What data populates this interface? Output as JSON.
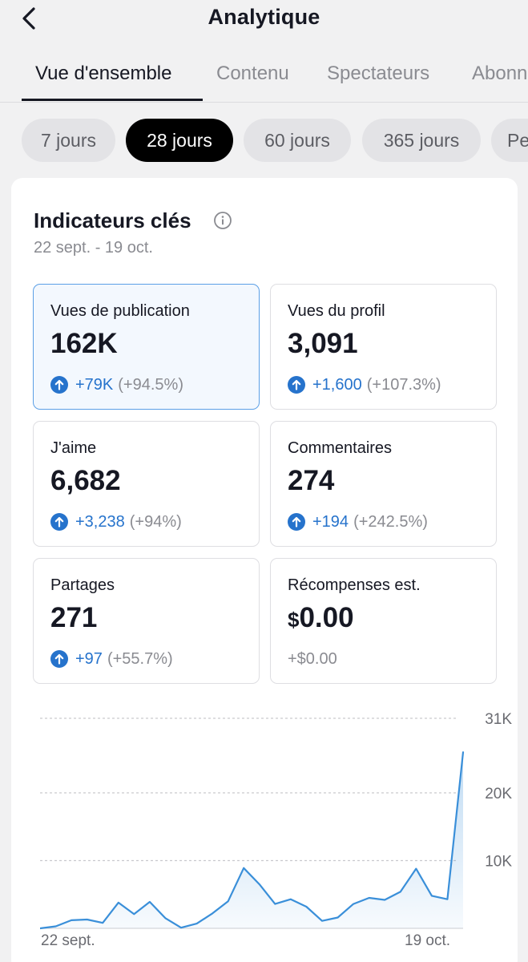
{
  "header": {
    "title": "Analytique",
    "back_icon": "chevron-left-icon"
  },
  "tabs": [
    {
      "label": "Vue d'ensemble",
      "active": true
    },
    {
      "label": "Contenu",
      "active": false
    },
    {
      "label": "Spectateurs",
      "active": false
    },
    {
      "label": "Abonnés",
      "active": false
    }
  ],
  "periods": [
    {
      "label": "7 jours",
      "active": false
    },
    {
      "label": "28 jours",
      "active": true
    },
    {
      "label": "60 jours",
      "active": false
    },
    {
      "label": "365 jours",
      "active": false
    },
    {
      "label": "Personnalisé",
      "active": false
    }
  ],
  "key_metrics": {
    "title": "Indicateurs clés",
    "info_icon": "info-icon",
    "date_range": "22 sept. - 19 oct.",
    "items": [
      {
        "label": "Vues de publication",
        "value": "162K",
        "delta": "+79K",
        "pct": "(+94.5%)",
        "selected": true
      },
      {
        "label": "Vues du profil",
        "value": "3,091",
        "delta": "+1,600",
        "pct": "(+107.3%)",
        "selected": false
      },
      {
        "label": "J'aime",
        "value": "6,682",
        "delta": "+3,238",
        "pct": "(+94%)",
        "selected": false
      },
      {
        "label": "Commentaires",
        "value": "274",
        "delta": "+194",
        "pct": "(+242.5%)",
        "selected": false
      },
      {
        "label": "Partages",
        "value": "271",
        "delta": "+97",
        "pct": "(+55.7%)",
        "selected": false
      },
      {
        "label": "Récompenses est.",
        "currency": "$",
        "value": "0.00",
        "delta": "+$0.00",
        "pct": "",
        "selected": false
      }
    ]
  },
  "colors": {
    "accent": "#2673cc",
    "line": "#3a8fd9",
    "selected_bg": "#f3f8fe",
    "selected_border": "#5b9fe6"
  },
  "chart_data": {
    "type": "area",
    "series": [
      {
        "values": [
          0,
          300,
          1200,
          1300,
          800,
          3800,
          2100,
          3900,
          1500,
          100,
          700,
          2200,
          4000,
          8900,
          6500,
          3600,
          4300,
          3200,
          1100,
          1600,
          3600,
          4500,
          4200,
          5400,
          8800,
          4800,
          4300,
          26000
        ]
      }
    ],
    "x_tick_labels": [
      "22 sept.",
      "19 oct."
    ],
    "y_ticks": [
      "31K",
      "20K",
      "10K"
    ],
    "y_tick_values": [
      31000,
      20000,
      10000
    ],
    "ylim": [
      0,
      31000
    ],
    "grid": true
  }
}
